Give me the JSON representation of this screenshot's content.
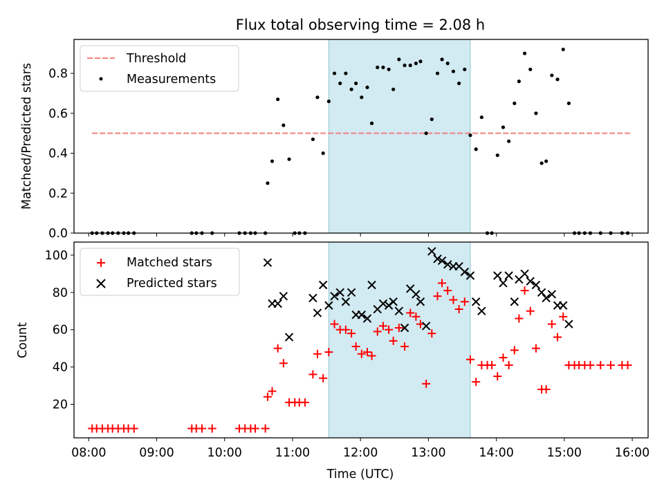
{
  "chart_data": [
    {
      "type": "scatter",
      "title": "Flux total observing time = 2.08 h",
      "xlabel": "",
      "ylabel": "Matched/Predicted stars",
      "ylim": [
        0,
        0.97
      ],
      "xlim": [
        "07:47",
        "16:14"
      ],
      "y_ticks": [
        0.0,
        0.2,
        0.4,
        0.6,
        0.8
      ],
      "y_tick_labels": [
        "0.0",
        "0.2",
        "0.4",
        "0.6",
        "0.8"
      ],
      "legend_position": "top-left",
      "legend": [
        "Threshold",
        "Measurements"
      ],
      "highlight_span": {
        "start": "11:32",
        "end": "13:37",
        "color": "#add8e6"
      },
      "threshold": {
        "name": "Threshold",
        "value": 0.5,
        "x_range": [
          "08:03",
          "16:00"
        ],
        "color": "#f08080"
      },
      "series": [
        {
          "name": "Measurements",
          "color": "#000000",
          "points": [
            [
              "08:03",
              0
            ],
            [
              "08:07",
              0
            ],
            [
              "08:12",
              0
            ],
            [
              "08:17",
              0
            ],
            [
              "08:21",
              0
            ],
            [
              "08:26",
              0
            ],
            [
              "08:31",
              0
            ],
            [
              "08:35",
              0
            ],
            [
              "08:40",
              0
            ],
            [
              "09:31",
              0
            ],
            [
              "09:35",
              0
            ],
            [
              "09:40",
              0
            ],
            [
              "09:49",
              0
            ],
            [
              "10:13",
              0
            ],
            [
              "10:18",
              0
            ],
            [
              "10:23",
              0
            ],
            [
              "10:27",
              0
            ],
            [
              "10:36",
              0
            ],
            [
              "10:38",
              0.25
            ],
            [
              "10:42",
              0.36
            ],
            [
              "10:47",
              0.67
            ],
            [
              "10:52",
              0.54
            ],
            [
              "10:57",
              0.37
            ],
            [
              "11:02",
              0
            ],
            [
              "11:06",
              0
            ],
            [
              "11:11",
              0
            ],
            [
              "11:18",
              0.47
            ],
            [
              "11:22",
              0.68
            ],
            [
              "11:27",
              0.4
            ],
            [
              "11:32",
              0.66
            ],
            [
              "11:37",
              0.8
            ],
            [
              "11:42",
              0.75
            ],
            [
              "11:47",
              0.8
            ],
            [
              "11:52",
              0.72
            ],
            [
              "11:56",
              0.75
            ],
            [
              "12:01",
              0.68
            ],
            [
              "12:06",
              0.73
            ],
            [
              "12:10",
              0.55
            ],
            [
              "12:15",
              0.83
            ],
            [
              "12:20",
              0.83
            ],
            [
              "12:25",
              0.82
            ],
            [
              "12:29",
              0.72
            ],
            [
              "12:34",
              0.87
            ],
            [
              "12:39",
              0.84
            ],
            [
              "12:44",
              0.84
            ],
            [
              "12:49",
              0.85
            ],
            [
              "12:53",
              0.86
            ],
            [
              "12:58",
              0.5
            ],
            [
              "13:03",
              0.57
            ],
            [
              "13:08",
              0.8
            ],
            [
              "13:12",
              0.87
            ],
            [
              "13:17",
              0.85
            ],
            [
              "13:22",
              0.81
            ],
            [
              "13:27",
              0.75
            ],
            [
              "13:32",
              0.82
            ],
            [
              "13:37",
              0.49
            ],
            [
              "13:42",
              0.42
            ],
            [
              "13:47",
              0.58
            ],
            [
              "13:52",
              0
            ],
            [
              "13:56",
              0
            ],
            [
              "14:01",
              0.39
            ],
            [
              "14:06",
              0.53
            ],
            [
              "14:11",
              0.46
            ],
            [
              "14:16",
              0.65
            ],
            [
              "14:20",
              0.76
            ],
            [
              "14:25",
              0.9
            ],
            [
              "14:30",
              0.82
            ],
            [
              "14:35",
              0.6
            ],
            [
              "14:40",
              0.35
            ],
            [
              "14:44",
              0.36
            ],
            [
              "14:49",
              0.79
            ],
            [
              "14:54",
              0.77
            ],
            [
              "14:59",
              0.92
            ],
            [
              "15:04",
              0.65
            ],
            [
              "15:09",
              0
            ],
            [
              "15:13",
              0
            ],
            [
              "15:18",
              0
            ],
            [
              "15:23",
              0
            ],
            [
              "15:32",
              0
            ],
            [
              "15:41",
              0
            ],
            [
              "15:51",
              0
            ],
            [
              "15:56",
              0
            ]
          ]
        }
      ]
    },
    {
      "type": "scatter",
      "title": "",
      "xlabel": "Time (UTC)",
      "ylabel": "Count",
      "ylim": [
        2,
        107
      ],
      "xlim": [
        "07:47",
        "16:14"
      ],
      "x_ticks": [
        "08:00",
        "09:00",
        "10:00",
        "11:00",
        "12:00",
        "13:00",
        "14:00",
        "15:00",
        "16:00"
      ],
      "y_ticks": [
        20,
        40,
        60,
        80,
        100
      ],
      "y_tick_labels": [
        "20",
        "40",
        "60",
        "80",
        "100"
      ],
      "legend_position": "top-left",
      "legend": [
        "Matched stars",
        "Predicted stars"
      ],
      "highlight_span": {
        "start": "11:32",
        "end": "13:37",
        "color": "#add8e6"
      },
      "series": [
        {
          "name": "Matched stars",
          "color": "#ff0000",
          "marker": "+",
          "points": [
            [
              "08:03",
              7
            ],
            [
              "08:07",
              7
            ],
            [
              "08:12",
              7
            ],
            [
              "08:17",
              7
            ],
            [
              "08:21",
              7
            ],
            [
              "08:26",
              7
            ],
            [
              "08:31",
              7
            ],
            [
              "08:35",
              7
            ],
            [
              "08:40",
              7
            ],
            [
              "09:31",
              7
            ],
            [
              "09:35",
              7
            ],
            [
              "09:40",
              7
            ],
            [
              "09:49",
              7
            ],
            [
              "10:13",
              7
            ],
            [
              "10:18",
              7
            ],
            [
              "10:23",
              7
            ],
            [
              "10:27",
              7
            ],
            [
              "10:36",
              7
            ],
            [
              "10:38",
              24
            ],
            [
              "10:42",
              27
            ],
            [
              "10:47",
              50
            ],
            [
              "10:52",
              42
            ],
            [
              "10:57",
              21
            ],
            [
              "11:02",
              21
            ],
            [
              "11:06",
              21
            ],
            [
              "11:11",
              21
            ],
            [
              "11:18",
              36
            ],
            [
              "11:22",
              47
            ],
            [
              "11:27",
              34
            ],
            [
              "11:32",
              48
            ],
            [
              "11:37",
              63
            ],
            [
              "11:42",
              60
            ],
            [
              "11:47",
              60
            ],
            [
              "11:52",
              58
            ],
            [
              "11:56",
              51
            ],
            [
              "12:01",
              47
            ],
            [
              "12:06",
              48
            ],
            [
              "12:10",
              46
            ],
            [
              "12:15",
              59
            ],
            [
              "12:20",
              62
            ],
            [
              "12:25",
              60
            ],
            [
              "12:29",
              54
            ],
            [
              "12:34",
              61
            ],
            [
              "12:39",
              51
            ],
            [
              "12:44",
              69
            ],
            [
              "12:49",
              67
            ],
            [
              "12:53",
              63
            ],
            [
              "12:58",
              31
            ],
            [
              "13:03",
              58
            ],
            [
              "13:08",
              78
            ],
            [
              "13:12",
              85
            ],
            [
              "13:17",
              81
            ],
            [
              "13:22",
              76
            ],
            [
              "13:27",
              71
            ],
            [
              "13:32",
              75
            ],
            [
              "13:37",
              44
            ],
            [
              "13:42",
              32
            ],
            [
              "13:47",
              41
            ],
            [
              "13:52",
              41
            ],
            [
              "13:56",
              41
            ],
            [
              "14:01",
              35
            ],
            [
              "14:06",
              45
            ],
            [
              "14:11",
              41
            ],
            [
              "14:16",
              49
            ],
            [
              "14:20",
              66
            ],
            [
              "14:25",
              81
            ],
            [
              "14:30",
              70
            ],
            [
              "14:35",
              50
            ],
            [
              "14:40",
              28
            ],
            [
              "14:44",
              28
            ],
            [
              "14:49",
              63
            ],
            [
              "14:54",
              56
            ],
            [
              "14:59",
              67
            ],
            [
              "15:04",
              41
            ],
            [
              "15:09",
              41
            ],
            [
              "15:13",
              41
            ],
            [
              "15:18",
              41
            ],
            [
              "15:23",
              41
            ],
            [
              "15:32",
              41
            ],
            [
              "15:41",
              41
            ],
            [
              "15:51",
              41
            ],
            [
              "15:56",
              41
            ]
          ]
        },
        {
          "name": "Predicted stars",
          "color": "#000000",
          "marker": "x",
          "points": [
            [
              "10:38",
              96
            ],
            [
              "10:42",
              74
            ],
            [
              "10:47",
              74
            ],
            [
              "10:52",
              78
            ],
            [
              "10:57",
              56
            ],
            [
              "11:18",
              77
            ],
            [
              "11:22",
              69
            ],
            [
              "11:27",
              84
            ],
            [
              "11:32",
              73
            ],
            [
              "11:37",
              78
            ],
            [
              "11:42",
              80
            ],
            [
              "11:47",
              75
            ],
            [
              "11:52",
              80
            ],
            [
              "11:56",
              68
            ],
            [
              "12:01",
              68
            ],
            [
              "12:06",
              66
            ],
            [
              "12:10",
              84
            ],
            [
              "12:15",
              71
            ],
            [
              "12:20",
              74
            ],
            [
              "12:25",
              73
            ],
            [
              "12:29",
              75
            ],
            [
              "12:34",
              70
            ],
            [
              "12:39",
              61
            ],
            [
              "12:44",
              82
            ],
            [
              "12:49",
              79
            ],
            [
              "12:53",
              75
            ],
            [
              "12:58",
              62
            ],
            [
              "13:03",
              102
            ],
            [
              "13:08",
              98
            ],
            [
              "13:12",
              97
            ],
            [
              "13:17",
              95
            ],
            [
              "13:22",
              94
            ],
            [
              "13:27",
              94
            ],
            [
              "13:32",
              91
            ],
            [
              "13:37",
              89
            ],
            [
              "13:42",
              75
            ],
            [
              "13:47",
              70
            ],
            [
              "14:01",
              89
            ],
            [
              "14:06",
              85
            ],
            [
              "14:11",
              89
            ],
            [
              "14:16",
              75
            ],
            [
              "14:20",
              87
            ],
            [
              "14:25",
              90
            ],
            [
              "14:30",
              86
            ],
            [
              "14:35",
              84
            ],
            [
              "14:40",
              80
            ],
            [
              "14:44",
              77
            ],
            [
              "14:49",
              79
            ],
            [
              "14:54",
              73
            ],
            [
              "14:59",
              73
            ],
            [
              "15:04",
              63
            ]
          ]
        }
      ]
    }
  ]
}
